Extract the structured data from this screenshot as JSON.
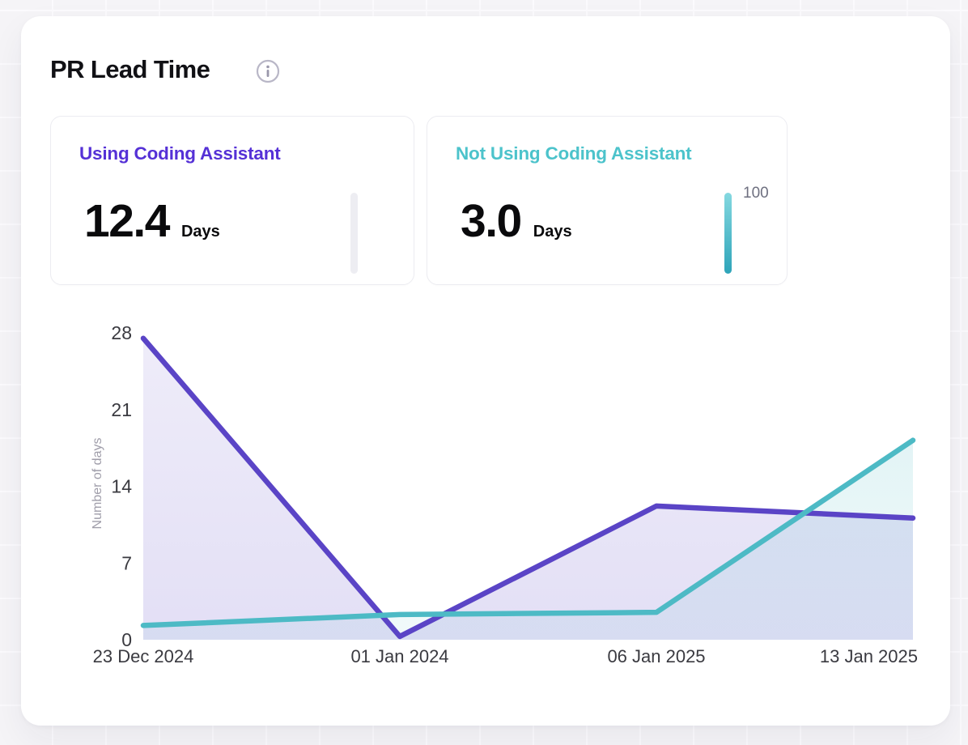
{
  "header": {
    "title": "PR Lead Time",
    "info_icon": "info-icon"
  },
  "stat_cards": [
    {
      "label": "Using Coding Assistant",
      "value": "12.4",
      "unit": "Days",
      "accent": "#5531d6",
      "gauge": {
        "fill_percent": 0,
        "label": "",
        "gradient_top": "",
        "gradient_bottom": "",
        "track": "#ededf2"
      }
    },
    {
      "label": "Not Using Coding Assistant",
      "value": "3.0",
      "unit": "Days",
      "accent": "#4cc3cb",
      "gauge": {
        "fill_percent": 100,
        "label": "100",
        "gradient_top": "#84d8e0",
        "gradient_bottom": "#2ea4b9",
        "track": "#ededf2"
      }
    }
  ],
  "chart_data": {
    "type": "area",
    "title": "PR Lead Time",
    "x": [
      "23 Dec 2024",
      "01 Jan 2024",
      "06 Jan 2025",
      "13 Jan 2025"
    ],
    "series": [
      {
        "name": "Using Coding Assistant",
        "color": "#5a44c6",
        "fill_opacity_top": 0.1,
        "fill_opacity_bottom": 0.17,
        "values": [
          27.5,
          0.3,
          12.2,
          11.1
        ]
      },
      {
        "name": "Not Using Coding Assistant",
        "color": "#4dbac5",
        "fill_opacity_top": 0.16,
        "fill_opacity_bottom": 0.08,
        "values": [
          1.3,
          2.3,
          2.5,
          18.2
        ]
      }
    ],
    "xlabel": "",
    "ylabel": "Number of days",
    "yticks": [
      0,
      7,
      14,
      21,
      28
    ],
    "ylim": [
      0,
      28
    ],
    "grid": false,
    "legend": "none",
    "line_width": 6.5,
    "tick_color": "#3a3a40",
    "axis_label_color": "#a09eaa"
  },
  "colors": {
    "accent_purple": "#5531d6",
    "accent_teal": "#4cc3cb",
    "card_bg": "#ffffff",
    "page_bg": "#f5f4f7",
    "text": "#101014",
    "icon_gray": "#b9b7c7"
  }
}
